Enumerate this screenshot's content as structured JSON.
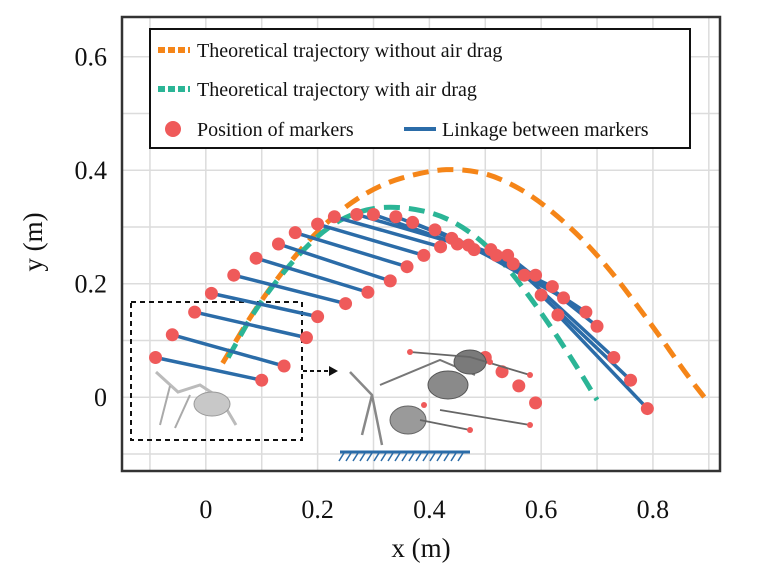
{
  "chart_data": {
    "type": "line",
    "title": "",
    "xlabel": "x (m)",
    "ylabel": "y (m)",
    "xlim": [
      -0.15,
      0.92
    ],
    "ylim": [
      -0.13,
      0.67
    ],
    "grid": true,
    "x_ticks": [
      0,
      0.2,
      0.4,
      0.6,
      0.8
    ],
    "x_tick_labels": [
      "0",
      "0.2",
      "0.4",
      "0.6",
      "0.8"
    ],
    "y_ticks": [
      0,
      0.2,
      0.4,
      0.6
    ],
    "y_tick_labels": [
      "0",
      "0.2",
      "0.4",
      "0.6"
    ],
    "legend": {
      "placement": "top",
      "entries": [
        {
          "label": "Theoretical trajectory without air drag",
          "style": "dashed",
          "color": "#f58518"
        },
        {
          "label": "Theoretical trajectory with air drag",
          "style": "dashed",
          "color": "#2bb596"
        },
        {
          "label": "Position of markers",
          "style": "marker",
          "color": "#ef5a5a"
        },
        {
          "label": "Linkage between markers",
          "style": "line",
          "color": "#2b6ca8"
        }
      ]
    },
    "series": [
      {
        "name": "Theoretical trajectory without air drag",
        "color": "#f58518",
        "points": [
          [
            0.03,
            0.06
          ],
          [
            0.1,
            0.175
          ],
          [
            0.2,
            0.298
          ],
          [
            0.3,
            0.372
          ],
          [
            0.4,
            0.4
          ],
          [
            0.46,
            0.402
          ],
          [
            0.52,
            0.39
          ],
          [
            0.6,
            0.346
          ],
          [
            0.7,
            0.255
          ],
          [
            0.8,
            0.125
          ],
          [
            0.86,
            0.04
          ],
          [
            0.9,
            -0.01
          ]
        ]
      },
      {
        "name": "Theoretical trajectory with air drag",
        "color": "#2bb596",
        "points": [
          [
            0.04,
            0.07
          ],
          [
            0.1,
            0.175
          ],
          [
            0.2,
            0.29
          ],
          [
            0.28,
            0.333
          ],
          [
            0.36,
            0.336
          ],
          [
            0.44,
            0.315
          ],
          [
            0.52,
            0.255
          ],
          [
            0.6,
            0.15
          ],
          [
            0.66,
            0.06
          ],
          [
            0.7,
            -0.005
          ]
        ]
      },
      {
        "name": "Linkage between markers",
        "color": "#2b6ca8",
        "segments": [
          [
            [
              -0.09,
              0.07
            ],
            [
              0.1,
              0.03
            ]
          ],
          [
            [
              -0.06,
              0.11
            ],
            [
              0.14,
              0.055
            ]
          ],
          [
            [
              -0.02,
              0.15
            ],
            [
              0.18,
              0.105
            ]
          ],
          [
            [
              0.01,
              0.183
            ],
            [
              0.2,
              0.142
            ]
          ],
          [
            [
              0.05,
              0.215
            ],
            [
              0.25,
              0.165
            ]
          ],
          [
            [
              0.09,
              0.245
            ],
            [
              0.29,
              0.185
            ]
          ],
          [
            [
              0.13,
              0.27
            ],
            [
              0.33,
              0.205
            ]
          ],
          [
            [
              0.16,
              0.29
            ],
            [
              0.36,
              0.23
            ]
          ],
          [
            [
              0.2,
              0.305
            ],
            [
              0.39,
              0.25
            ]
          ],
          [
            [
              0.23,
              0.318
            ],
            [
              0.42,
              0.265
            ]
          ],
          [
            [
              0.27,
              0.322
            ],
            [
              0.45,
              0.27
            ]
          ],
          [
            [
              0.3,
              0.322
            ],
            [
              0.48,
              0.26
            ]
          ],
          [
            [
              0.34,
              0.318
            ],
            [
              0.52,
              0.25
            ]
          ],
          [
            [
              0.37,
              0.308
            ],
            [
              0.55,
              0.235
            ]
          ],
          [
            [
              0.41,
              0.295
            ],
            [
              0.59,
              0.215
            ]
          ],
          [
            [
              0.44,
              0.28
            ],
            [
              0.62,
              0.195
            ]
          ],
          [
            [
              0.47,
              0.268
            ],
            [
              0.64,
              0.175
            ]
          ],
          [
            [
              0.51,
              0.26
            ],
            [
              0.68,
              0.15
            ]
          ],
          [
            [
              0.54,
              0.25
            ],
            [
              0.7,
              0.125
            ]
          ],
          [
            [
              0.57,
              0.215
            ],
            [
              0.73,
              0.07
            ]
          ],
          [
            [
              0.6,
              0.18
            ],
            [
              0.76,
              0.03
            ]
          ],
          [
            [
              0.63,
              0.145
            ],
            [
              0.79,
              -0.02
            ]
          ]
        ]
      },
      {
        "name": "Position of markers",
        "color": "#ef5a5a",
        "points": [
          [
            -0.09,
            0.07
          ],
          [
            0.1,
            0.03
          ],
          [
            -0.06,
            0.11
          ],
          [
            0.14,
            0.055
          ],
          [
            -0.02,
            0.15
          ],
          [
            0.18,
            0.105
          ],
          [
            0.01,
            0.183
          ],
          [
            0.2,
            0.142
          ],
          [
            0.05,
            0.215
          ],
          [
            0.25,
            0.165
          ],
          [
            0.09,
            0.245
          ],
          [
            0.29,
            0.185
          ],
          [
            0.13,
            0.27
          ],
          [
            0.33,
            0.205
          ],
          [
            0.16,
            0.29
          ],
          [
            0.36,
            0.23
          ],
          [
            0.2,
            0.305
          ],
          [
            0.39,
            0.25
          ],
          [
            0.23,
            0.318
          ],
          [
            0.42,
            0.265
          ],
          [
            0.27,
            0.322
          ],
          [
            0.45,
            0.27
          ],
          [
            0.3,
            0.322
          ],
          [
            0.48,
            0.26
          ],
          [
            0.34,
            0.318
          ],
          [
            0.52,
            0.25
          ],
          [
            0.37,
            0.308
          ],
          [
            0.55,
            0.235
          ],
          [
            0.41,
            0.295
          ],
          [
            0.59,
            0.215
          ],
          [
            0.44,
            0.28
          ],
          [
            0.62,
            0.195
          ],
          [
            0.47,
            0.268
          ],
          [
            0.64,
            0.175
          ],
          [
            0.51,
            0.26
          ],
          [
            0.68,
            0.15
          ],
          [
            0.54,
            0.25
          ],
          [
            0.7,
            0.125
          ],
          [
            0.57,
            0.215
          ],
          [
            0.73,
            0.07
          ],
          [
            0.6,
            0.18
          ],
          [
            0.76,
            0.03
          ],
          [
            0.63,
            0.145
          ],
          [
            0.79,
            -0.02
          ],
          [
            0.5,
            0.07
          ],
          [
            0.53,
            0.045
          ],
          [
            0.56,
            0.02
          ],
          [
            0.59,
            -0.01
          ]
        ]
      }
    ],
    "annotations": [
      "inset dashed box around initial robot pose at launch",
      "arrow to robot image sequence with ground hatching"
    ]
  }
}
